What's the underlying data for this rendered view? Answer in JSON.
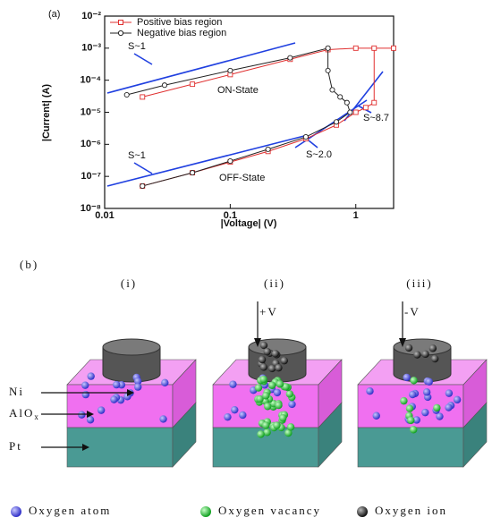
{
  "chart_data": {
    "type": "line",
    "panel": "(a)",
    "xlabel": "|Voltage| (V)",
    "ylabel": "|Current| (A)",
    "log_x": true,
    "log_y": true,
    "xlim": [
      0.01,
      2
    ],
    "xticks": [
      0.01,
      0.1,
      1
    ],
    "ylim": [
      1e-08,
      0.01
    ],
    "yticks": [
      {
        "value": 1e-08,
        "label": "10⁻⁸"
      },
      {
        "value": 1e-07,
        "label": "10⁻⁷"
      },
      {
        "value": 1e-06,
        "label": "10⁻⁶"
      },
      {
        "value": 1e-05,
        "label": "10⁻⁵"
      },
      {
        "value": 0.0001,
        "label": "10⁻⁴"
      },
      {
        "value": 0.001,
        "label": "10⁻³"
      },
      {
        "value": 0.01,
        "label": "10⁻²"
      }
    ],
    "legend": "upper left",
    "series": [
      {
        "name": "Positive bias region",
        "color": "#e03030",
        "marker": "square",
        "x": [
          0.02,
          0.05,
          0.1,
          0.2,
          0.4,
          0.7,
          1.0,
          1.2,
          1.4,
          1.4,
          2.0,
          1.0,
          0.6,
          0.3,
          0.1,
          0.05,
          0.02
        ],
        "values": [
          5e-08,
          1.3e-07,
          2.8e-07,
          6e-07,
          1.5e-06,
          4e-06,
          1e-05,
          1.4e-05,
          2e-05,
          0.001,
          0.001,
          0.001,
          0.0009,
          0.00045,
          0.00015,
          7.5e-05,
          3e-05
        ]
      },
      {
        "name": "Negative bias region",
        "color": "#222222",
        "marker": "circle",
        "x": [
          0.015,
          0.03,
          0.1,
          0.3,
          0.6,
          0.6,
          0.65,
          0.75,
          0.85,
          0.9,
          0.7,
          0.4,
          0.2,
          0.1,
          0.05,
          0.02
        ],
        "values": [
          3.5e-05,
          7e-05,
          0.0002,
          0.0005,
          0.001,
          0.0002,
          5e-05,
          3e-05,
          2e-05,
          1e-05,
          5e-06,
          1.7e-06,
          7e-07,
          3e-07,
          1.3e-07,
          5e-08
        ]
      }
    ],
    "annotations": [
      "S~1",
      "ON-State",
      "S~1",
      "OFF-State",
      "S~2.0",
      "S~8.7"
    ]
  },
  "diagram": {
    "panel": "(b)",
    "columns": [
      {
        "label": "(i)"
      },
      {
        "label": "(ii)",
        "voltage": "+V"
      },
      {
        "label": "(iii)",
        "voltage": "-V"
      }
    ],
    "layers": [
      {
        "label": "Ni"
      },
      {
        "label": "AlO",
        "subscript": "x"
      },
      {
        "label": "Pt"
      }
    ],
    "legend": [
      "Oxygen atom",
      "Oxygen vacancy",
      "Oxygen ion"
    ]
  }
}
